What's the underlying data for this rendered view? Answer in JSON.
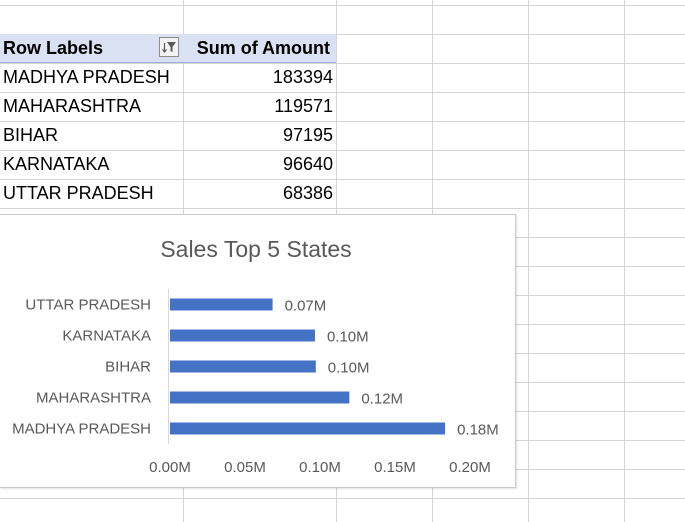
{
  "pivot": {
    "header": {
      "row_labels": "Row Labels",
      "sum_label": "Sum of Amount"
    },
    "rows": [
      {
        "label": "MADHYA PRADESH",
        "value": "183394"
      },
      {
        "label": "MAHARASHTRA",
        "value": "119571"
      },
      {
        "label": "BIHAR",
        "value": "97195"
      },
      {
        "label": "KARNATAKA",
        "value": "96640"
      },
      {
        "label": "UTTAR PRADESH",
        "value": "68386"
      }
    ]
  },
  "chart_data": {
    "type": "bar",
    "orientation": "horizontal",
    "title": "Sales Top 5 States",
    "xlabel": "",
    "ylabel": "",
    "categories": [
      "MADHYA PRADESH",
      "MAHARASHTRA",
      "BIHAR",
      "KARNATAKA",
      "UTTAR PRADESH"
    ],
    "values": [
      183394,
      119571,
      97195,
      96640,
      68386
    ],
    "data_labels": [
      "0.18M",
      "0.12M",
      "0.10M",
      "0.10M",
      "0.07M"
    ],
    "x_ticks": [
      "0.00M",
      "0.05M",
      "0.10M",
      "0.15M",
      "0.20M"
    ],
    "xlim": [
      0,
      200000
    ],
    "bar_color": "#4472c4",
    "grid": false,
    "legend": "none"
  },
  "colors": {
    "header_fill": "#d9e1f2",
    "gridline": "#d4d4d4",
    "text": "#000000",
    "chart_text": "#595959"
  },
  "icons": {
    "filter": "filter-sort-icon"
  }
}
